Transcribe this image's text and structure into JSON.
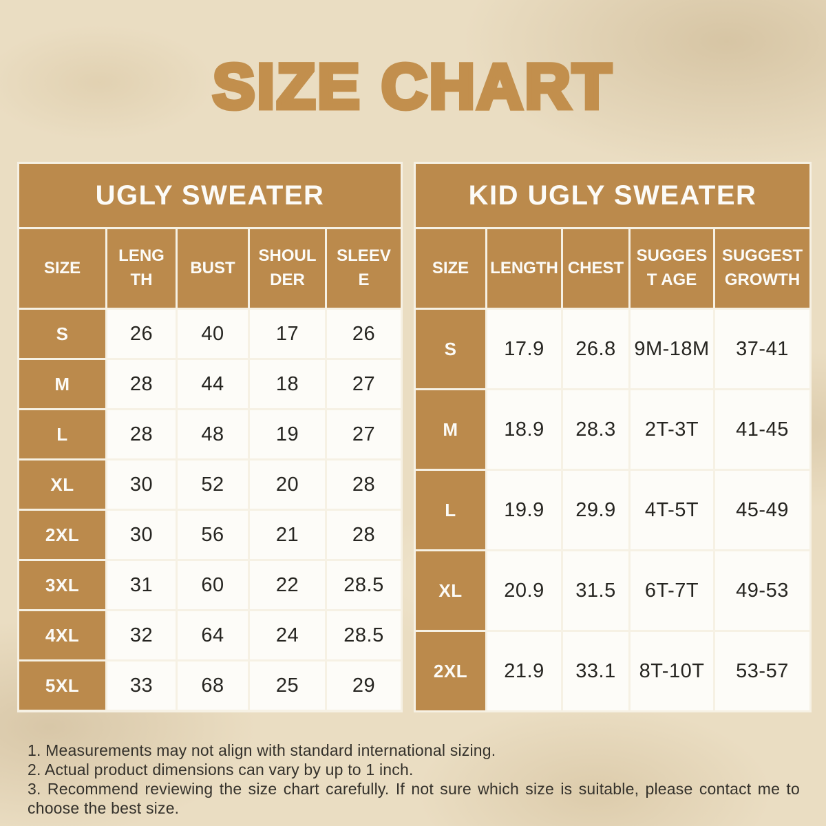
{
  "title": "SIZE CHART",
  "colors": {
    "accent_brown": "#BB8A4C",
    "title_brown": "#C28F4D",
    "page_background": "#EADDC2",
    "cell_background": "#FDFCF8",
    "text_dark": "#262521"
  },
  "chart_data": [
    {
      "type": "table",
      "title": "UGLY SWEATER",
      "columns": [
        "SIZE",
        "LENGTH",
        "BUST",
        "SHOULDER",
        "SLEEVE"
      ],
      "rows": [
        [
          "S",
          26,
          40,
          17,
          26
        ],
        [
          "M",
          28,
          44,
          18,
          27
        ],
        [
          "L",
          28,
          48,
          19,
          27
        ],
        [
          "XL",
          30,
          52,
          20,
          28
        ],
        [
          "2XL",
          30,
          56,
          21,
          28
        ],
        [
          "3XL",
          31,
          60,
          22,
          28.5
        ],
        [
          "4XL",
          32,
          64,
          24,
          28.5
        ],
        [
          "5XL",
          33,
          68,
          25,
          29
        ]
      ]
    },
    {
      "type": "table",
      "title": "KID UGLY SWEATER",
      "columns": [
        "SIZE",
        "LENGTH",
        "CHEST",
        "SUGGEST AGE",
        "SUGGEST GROWTH"
      ],
      "rows": [
        [
          "S",
          17.9,
          26.8,
          "9M-18M",
          "37-41"
        ],
        [
          "M",
          18.9,
          28.3,
          "2T-3T",
          "41-45"
        ],
        [
          "L",
          19.9,
          29.9,
          "4T-5T",
          "45-49"
        ],
        [
          "XL",
          20.9,
          31.5,
          "6T-7T",
          "49-53"
        ],
        [
          "2XL",
          21.9,
          33.1,
          "8T-10T",
          "53-57"
        ]
      ]
    }
  ],
  "notes": [
    "1. Measurements may not align with standard international sizing.",
    "2. Actual product dimensions can vary by up to 1 inch.",
    "3. Recommend reviewing the size chart carefully. If not sure which size is suitable, please contact me to choose the best size."
  ]
}
